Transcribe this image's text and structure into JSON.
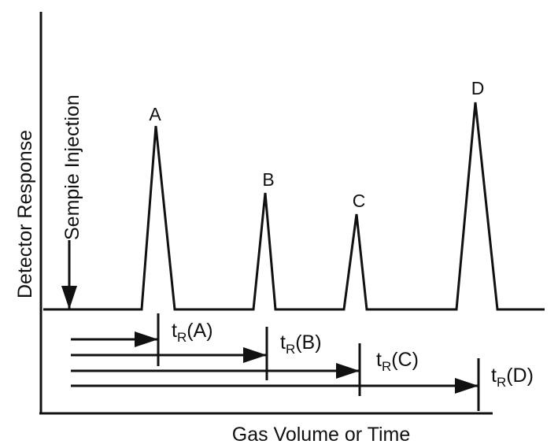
{
  "y_axis_label": "Detector Response",
  "x_axis_label": "Gas Volume or Time",
  "injection_label": "Sempie Injection",
  "peaks": [
    {
      "label": "A"
    },
    {
      "label": "B"
    },
    {
      "label": "C"
    },
    {
      "label": "D"
    }
  ],
  "retention_labels": [
    {
      "symbol": "t",
      "subscript": "R",
      "suffix": "(A)"
    },
    {
      "symbol": "t",
      "subscript": "R",
      "suffix": "(B)"
    },
    {
      "symbol": "t",
      "subscript": "R",
      "suffix": "(C)"
    },
    {
      "symbol": "t",
      "subscript": "R",
      "suffix": "(D)"
    }
  ]
}
